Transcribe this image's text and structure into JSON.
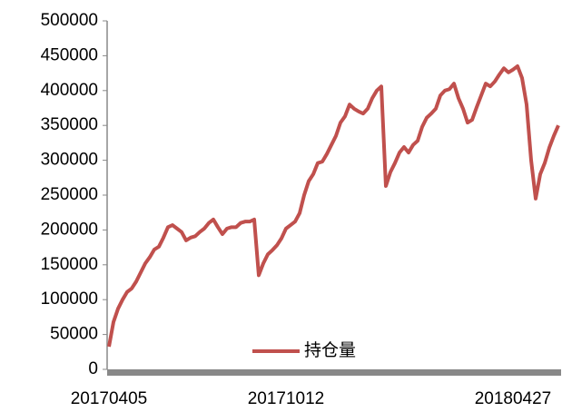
{
  "chart_data": {
    "type": "line",
    "x": [
      "20170405",
      null,
      null,
      null,
      null,
      null,
      null,
      null,
      null,
      null,
      null,
      null,
      null,
      null,
      null,
      null,
      null,
      null,
      null,
      null,
      null,
      null,
      null,
      null,
      null,
      null,
      null,
      null,
      null,
      null,
      null,
      null,
      null,
      null,
      null,
      null,
      null,
      null,
      null,
      "20171012",
      null,
      null,
      null,
      null,
      null,
      null,
      null,
      null,
      null,
      null,
      null,
      null,
      null,
      null,
      null,
      null,
      null,
      null,
      null,
      null,
      null,
      null,
      null,
      null,
      null,
      null,
      null,
      null,
      null,
      null,
      null,
      null,
      null,
      null,
      null,
      null,
      null,
      null,
      null,
      null,
      null,
      null,
      null,
      null,
      null,
      null,
      null,
      null,
      null,
      "20180427",
      null,
      null,
      null,
      null,
      null,
      null,
      null,
      null,
      null,
      null
    ],
    "series": [
      {
        "name": "持仓量",
        "color": "#c0504d",
        "values": [
          32500,
          68000,
          87000,
          100000,
          111000,
          116000,
          126000,
          139000,
          152000,
          161000,
          172000,
          176000,
          189000,
          204000,
          207000,
          202000,
          197000,
          185000,
          189000,
          191000,
          197000,
          202000,
          210000,
          215000,
          204000,
          194000,
          202000,
          204000,
          204000,
          210000,
          212000,
          212000,
          215000,
          135000,
          152000,
          165000,
          171000,
          178000,
          188000,
          202000,
          207000,
          212000,
          224000,
          250000,
          270000,
          280000,
          296000,
          298000,
          309000,
          322000,
          335000,
          354000,
          363000,
          380000,
          374000,
          370000,
          367000,
          374000,
          389000,
          400000,
          406000,
          263000,
          283000,
          296000,
          311000,
          319000,
          311000,
          322000,
          328000,
          348000,
          361000,
          367000,
          374000,
          393000,
          400000,
          402000,
          410000,
          389000,
          374000,
          354000,
          358000,
          376000,
          393000,
          410000,
          406000,
          413000,
          423000,
          432000,
          426000,
          430000,
          435000,
          418000,
          380000,
          300000,
          245000,
          280000,
          296000,
          318000,
          335000,
          350000
        ]
      }
    ],
    "ylim": [
      0,
      500000
    ],
    "yticks": [
      0,
      50000,
      100000,
      150000,
      200000,
      250000,
      300000,
      350000,
      400000,
      450000,
      500000
    ],
    "grid": false,
    "legend": "bottom"
  }
}
